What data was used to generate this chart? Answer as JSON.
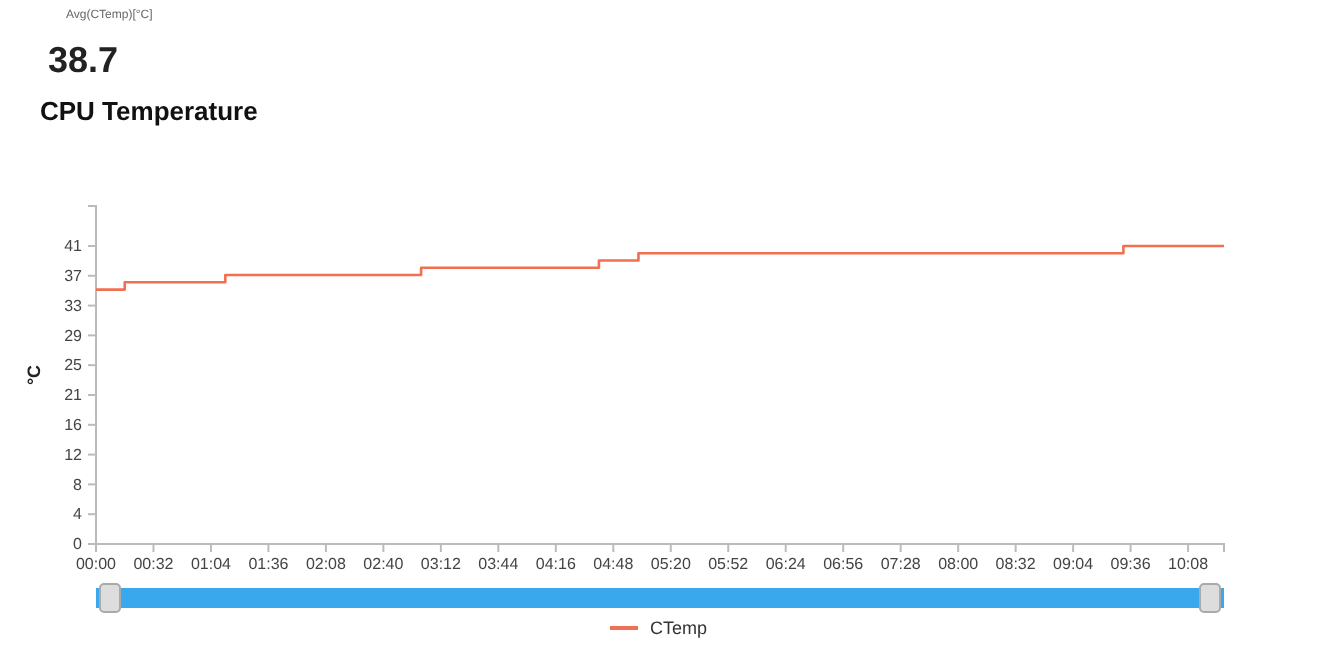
{
  "chart_data": {
    "type": "step",
    "title": "CPU Temperature",
    "ylabel": "°C",
    "annotations": [
      "Avg(CTemp)[°C]",
      "38.7"
    ],
    "x": [
      0,
      16,
      72,
      181,
      280,
      302,
      572,
      628
    ],
    "series": [
      {
        "name": "CTemp",
        "color": "#f07050",
        "values": [
          35,
          36,
          37,
          38,
          39,
          40,
          41,
          41
        ]
      }
    ],
    "xlim": [
      0,
      628
    ],
    "xticks": [
      {
        "value": 0,
        "label": "00:00"
      },
      {
        "value": 32,
        "label": "00:32"
      },
      {
        "value": 64,
        "label": "01:04"
      },
      {
        "value": 96,
        "label": "01:36"
      },
      {
        "value": 128,
        "label": "02:08"
      },
      {
        "value": 160,
        "label": "02:40"
      },
      {
        "value": 192,
        "label": "03:12"
      },
      {
        "value": 224,
        "label": "03:44"
      },
      {
        "value": 256,
        "label": "04:16"
      },
      {
        "value": 288,
        "label": "04:48"
      },
      {
        "value": 320,
        "label": "05:20"
      },
      {
        "value": 352,
        "label": "05:52"
      },
      {
        "value": 384,
        "label": "06:24"
      },
      {
        "value": 416,
        "label": "06:56"
      },
      {
        "value": 448,
        "label": "07:28"
      },
      {
        "value": 480,
        "label": "08:00"
      },
      {
        "value": 512,
        "label": "08:32"
      },
      {
        "value": 544,
        "label": "09:04"
      },
      {
        "value": 576,
        "label": "09:36"
      },
      {
        "value": 608,
        "label": "10:08"
      }
    ],
    "ylim": [
      0,
      46.5
    ],
    "yticks": [
      0,
      {
        "value": 4.1,
        "label": "4"
      },
      {
        "value": 8.2,
        "label": "8"
      },
      {
        "value": 12.3,
        "label": "12"
      },
      {
        "value": 16.4,
        "label": "16"
      },
      {
        "value": 20.5,
        "label": "21"
      },
      {
        "value": 24.6,
        "label": "25"
      },
      {
        "value": 28.7,
        "label": "29"
      },
      {
        "value": 32.8,
        "label": "33"
      },
      {
        "value": 36.9,
        "label": "37"
      },
      41
    ],
    "grid": false,
    "legend": "bottom",
    "marker": "none",
    "line_style": "solid"
  }
}
